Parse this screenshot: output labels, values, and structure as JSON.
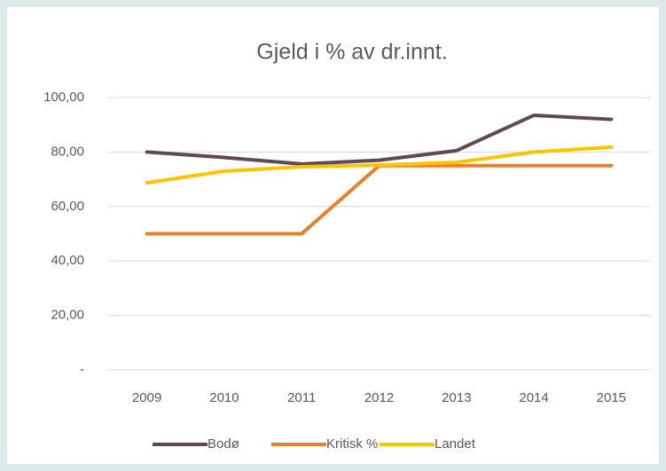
{
  "chart_data": {
    "type": "line",
    "title": "Gjeld i % av dr.innt.",
    "categories": [
      "2009",
      "2010",
      "2011",
      "2012",
      "2013",
      "2014",
      "2015"
    ],
    "series": [
      {
        "name": "Bodø",
        "color": "#5e4a55",
        "values": [
          80,
          78,
          75.6,
          77,
          80.5,
          93.5,
          92
        ]
      },
      {
        "name": "Kritisk %",
        "color": "#e8802a",
        "values": [
          50,
          50,
          50,
          75,
          75,
          75,
          75
        ]
      },
      {
        "name": "Landet",
        "color": "#ffc400",
        "values": [
          68.7,
          73,
          74.6,
          75.2,
          76.2,
          80,
          81.8
        ]
      }
    ],
    "ylim": [
      0,
      100
    ],
    "yticks": [
      {
        "value": 0,
        "label": "-"
      },
      {
        "value": 20,
        "label": "20,00"
      },
      {
        "value": 40,
        "label": "40,00"
      },
      {
        "value": 60,
        "label": "60,00"
      },
      {
        "value": 80,
        "label": "80,00"
      },
      {
        "value": 100,
        "label": "100,00"
      }
    ],
    "grid": true,
    "legend": "bottom"
  }
}
